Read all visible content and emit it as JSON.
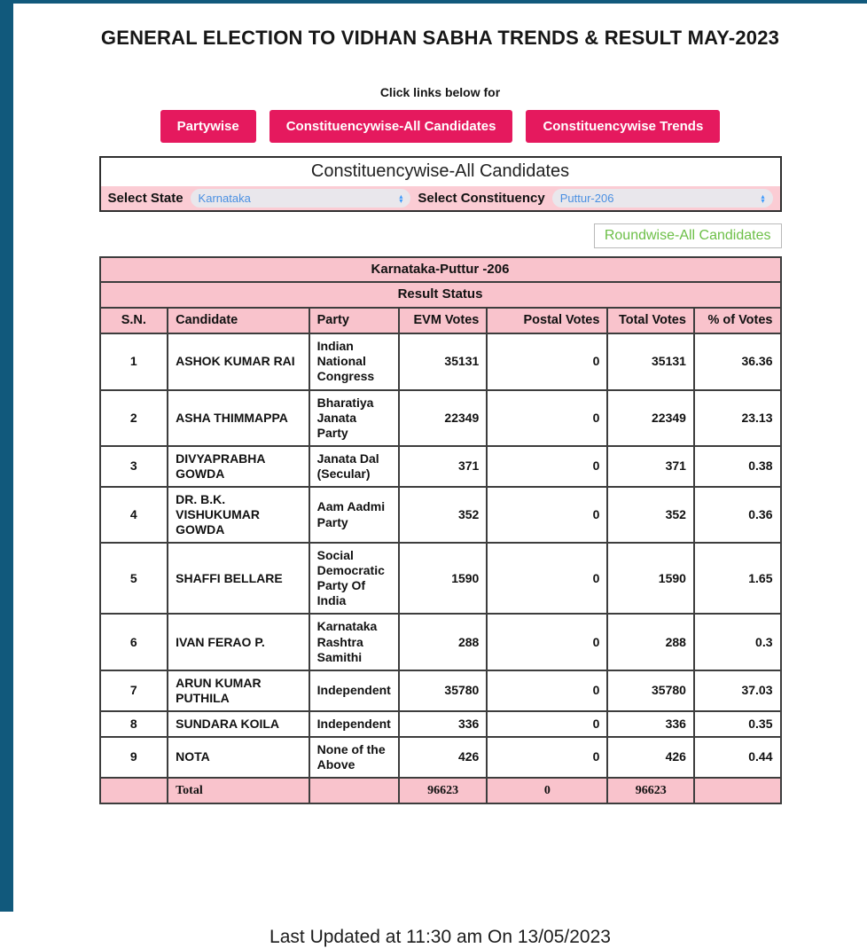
{
  "page": {
    "title": "GENERAL ELECTION TO VIDHAN SABHA TRENDS & RESULT MAY-2023",
    "subtitle": "Click links below for",
    "footer": "Last Updated at 11:30 am On 13/05/2023"
  },
  "nav_buttons": [
    {
      "label": "Partywise"
    },
    {
      "label": "Constituencywise-All Candidates"
    },
    {
      "label": "Constituencywise Trends"
    }
  ],
  "panel": {
    "title": "Constituencywise-All Candidates",
    "state_label": "Select State",
    "state_value": "Karnataka",
    "constituency_label": "Select Constituency",
    "constituency_value": "Puttur-206"
  },
  "roundwise_button_label": "Roundwise-All Candidates",
  "table": {
    "title": "Karnataka-Puttur -206",
    "subtitle": "Result Status",
    "columns": [
      "S.N.",
      "Candidate",
      "Party",
      "EVM Votes",
      "Postal Votes",
      "Total Votes",
      "% of Votes"
    ],
    "rows": [
      {
        "sn": "1",
        "candidate": "ASHOK KUMAR RAI",
        "party": "Indian National Congress",
        "evm": "35131",
        "postal": "0",
        "total": "35131",
        "pct": "36.36"
      },
      {
        "sn": "2",
        "candidate": "ASHA THIMMAPPA",
        "party": "Bharatiya Janata Party",
        "evm": "22349",
        "postal": "0",
        "total": "22349",
        "pct": "23.13"
      },
      {
        "sn": "3",
        "candidate": "DIVYAPRABHA GOWDA",
        "party": "Janata Dal (Secular)",
        "evm": "371",
        "postal": "0",
        "total": "371",
        "pct": "0.38"
      },
      {
        "sn": "4",
        "candidate": "DR. B.K. VISHUKUMAR GOWDA",
        "party": "Aam Aadmi Party",
        "evm": "352",
        "postal": "0",
        "total": "352",
        "pct": "0.36"
      },
      {
        "sn": "5",
        "candidate": "SHAFFI BELLARE",
        "party": "Social Democratic Party Of India",
        "evm": "1590",
        "postal": "0",
        "total": "1590",
        "pct": "1.65"
      },
      {
        "sn": "6",
        "candidate": "IVAN FERAO P.",
        "party": "Karnataka Rashtra Samithi",
        "evm": "288",
        "postal": "0",
        "total": "288",
        "pct": "0.3"
      },
      {
        "sn": "7",
        "candidate": "ARUN KUMAR PUTHILA",
        "party": "Independent",
        "evm": "35780",
        "postal": "0",
        "total": "35780",
        "pct": "37.03"
      },
      {
        "sn": "8",
        "candidate": "SUNDARA KOILA",
        "party": "Independent",
        "evm": "336",
        "postal": "0",
        "total": "336",
        "pct": "0.35"
      },
      {
        "sn": "9",
        "candidate": "NOTA",
        "party": "None of the Above",
        "evm": "426",
        "postal": "0",
        "total": "426",
        "pct": "0.44"
      }
    ],
    "total": {
      "label": "Total",
      "evm": "96623",
      "postal": "0",
      "total": "96623"
    }
  },
  "colors": {
    "brand_pink": "#e5195e",
    "table_pink": "#f9c3cc",
    "row_pink": "#fbccd4",
    "sidebar_teal": "#11597c",
    "link_green": "#6cbf47",
    "select_blue": "#4a90e2"
  }
}
